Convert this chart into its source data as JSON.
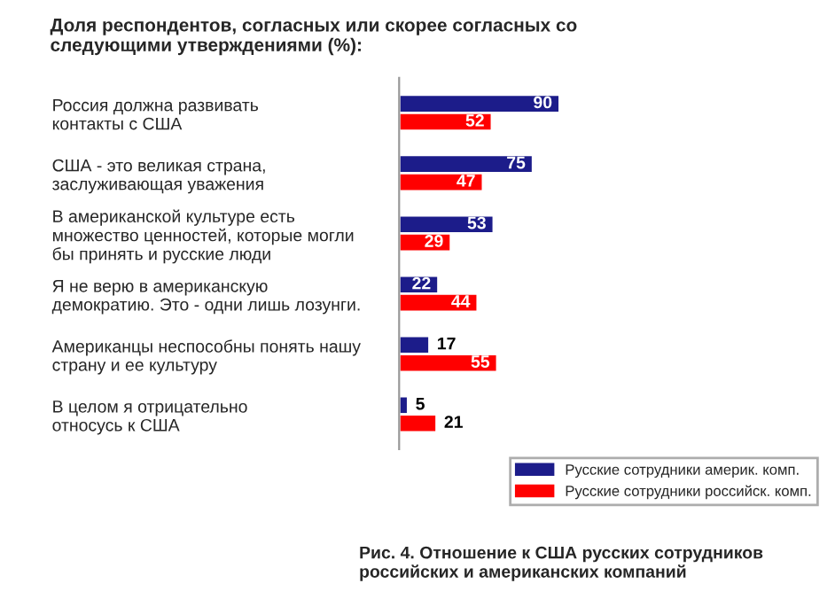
{
  "chart_data": {
    "type": "bar",
    "orientation": "horizontal",
    "title": "Доля респондентов, согласных или скорее согласных со\nследующими утверждениями (%):",
    "categories": [
      "Россия должна развивать\nконтакты с США",
      "США - это великая страна,\nзаслуживающая уважения",
      "В американской культуре есть\nмножество ценностей, которые могли\nбы принять и русские люди",
      "Я не верю в американскую\nдемократию. Это - одни лишь лозунги.",
      "Американцы неспособны понять нашу\nстрану и ее культуру",
      "В целом я отрицательно\nотносусь к США"
    ],
    "series": [
      {
        "name": "Русские сотрудники америк. комп.",
        "color": "#1c1c8a",
        "values": [
          90,
          75,
          53,
          22,
          17,
          5
        ]
      },
      {
        "name": "Русские сотрудники российск. комп.",
        "color": "#ff0000",
        "values": [
          52,
          47,
          29,
          44,
          55,
          21
        ]
      }
    ],
    "data_labels": true,
    "legend": "bottom right",
    "grid": false,
    "annotations": [
      "Рис. 4. Отношение к США русских сотрудников\nроссийских и американских компаний"
    ]
  }
}
